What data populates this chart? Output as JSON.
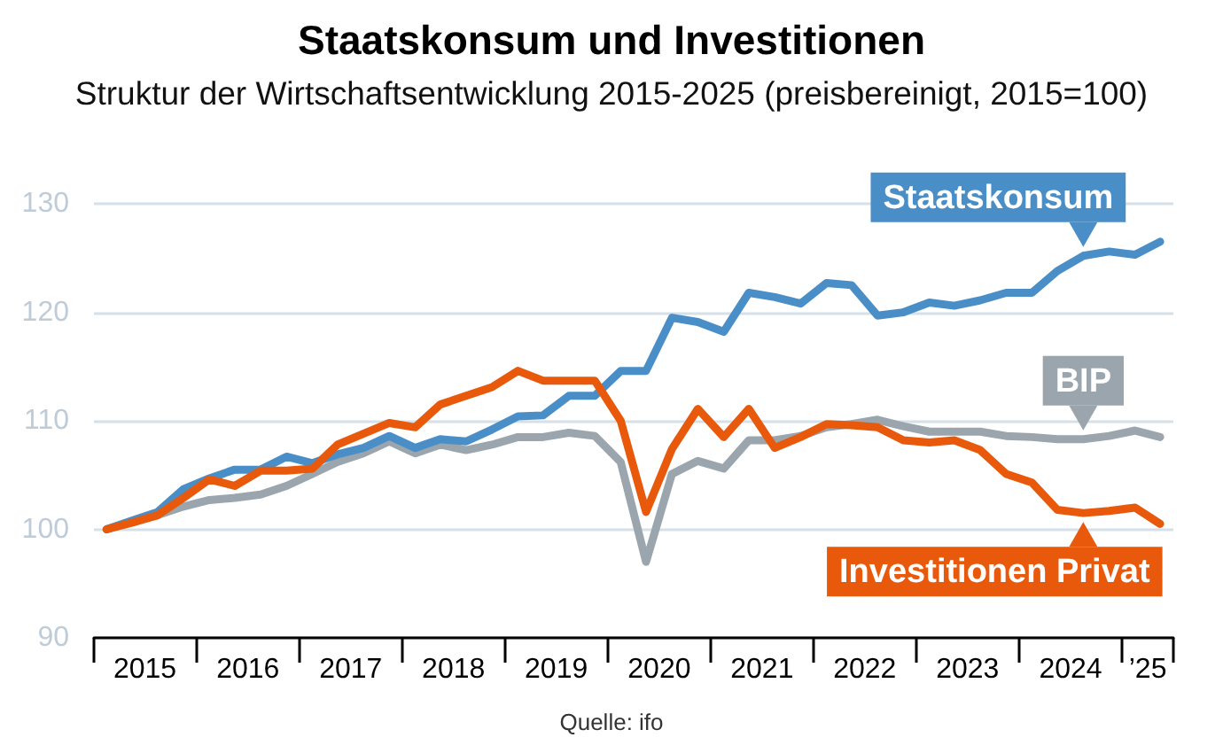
{
  "chart_data": {
    "type": "line",
    "title": "Staatskonsum und Investitionen",
    "subtitle": "Struktur der Wirtschaftsentwicklung 2015-2025 (preisbereinigt, 2015=100)",
    "annotations": [
      "Quelle: ifo"
    ],
    "x": [
      "2015-02-15",
      "2015-05-15",
      "2015-08-15",
      "2015-11-15",
      "2016-02-15",
      "2016-05-15",
      "2016-08-15",
      "2016-11-15",
      "2017-02-15",
      "2017-05-15",
      "2017-08-15",
      "2017-11-15",
      "2018-02-15",
      "2018-05-15",
      "2018-08-15",
      "2018-11-15",
      "2019-02-15",
      "2019-05-15",
      "2019-08-15",
      "2019-11-15",
      "2020-02-15",
      "2020-05-15",
      "2020-08-15",
      "2020-11-15",
      "2021-02-15",
      "2021-05-15",
      "2021-08-15",
      "2021-11-15",
      "2022-02-15",
      "2022-05-15",
      "2022-08-15",
      "2022-11-15",
      "2023-02-15",
      "2023-05-15",
      "2023-08-15",
      "2023-11-15",
      "2024-02-15",
      "2024-05-15",
      "2024-08-15",
      "2024-11-15",
      "2025-02-15",
      "2025-05-15"
    ],
    "series": [
      {
        "name": "BIP",
        "color": "#9aa5ad",
        "values": [
          100,
          100.7,
          101.3,
          102.1,
          102.7,
          102.9,
          103.2,
          104,
          105.1,
          106.2,
          107,
          108.1,
          107,
          107.8,
          107.3,
          107.8,
          108.5,
          108.5,
          108.9,
          108.6,
          106.2,
          97,
          105.1,
          106.3,
          105.6,
          108.2,
          108.2,
          108.6,
          109.4,
          109.7,
          110.1,
          109.5,
          109,
          109,
          109,
          108.6,
          108.5,
          108.3,
          108.3,
          108.6,
          109.1,
          108.5
        ]
      },
      {
        "name": "Staatskonsum",
        "color": "#4a8ec8",
        "values": [
          100,
          100.8,
          101.6,
          103.7,
          104.7,
          105.5,
          105.5,
          106.7,
          106.1,
          106.9,
          107.5,
          108.6,
          107.5,
          108.3,
          108.1,
          109.2,
          110.4,
          110.5,
          112.3,
          112.3,
          114.6,
          114.6,
          119.5,
          119.1,
          118.2,
          121.8,
          121.4,
          120.8,
          122.7,
          122.5,
          119.7,
          120,
          120.9,
          120.6,
          121.1,
          121.8,
          121.8,
          123.8,
          125.2,
          125.6,
          125.3,
          126.5
        ]
      },
      {
        "name": "Investitionen Privat",
        "color": "#e8590c",
        "values": [
          100,
          100.6,
          101.3,
          102.9,
          104.6,
          104,
          105.4,
          105.4,
          105.6,
          107.8,
          108.8,
          109.8,
          109.4,
          111.5,
          112.3,
          113.1,
          114.6,
          113.7,
          113.7,
          113.7,
          110,
          101.6,
          107.4,
          111.1,
          108.5,
          111.1,
          107.5,
          108.5,
          109.7,
          109.6,
          109.4,
          108.2,
          108,
          108.2,
          107.3,
          105.1,
          104.3,
          101.8,
          101.5,
          101.7,
          102,
          100.5
        ]
      }
    ],
    "xlim": [
      "2015-01-01",
      "2025-07-01"
    ],
    "xticks": [
      {
        "value": "2015-01-01",
        "label": null
      },
      {
        "value": "2015-07-01",
        "label": "2015"
      },
      {
        "value": "2016-01-01",
        "label": null
      },
      {
        "value": "2016-07-01",
        "label": "2016"
      },
      {
        "value": "2017-01-01",
        "label": null
      },
      {
        "value": "2017-07-01",
        "label": "2017"
      },
      {
        "value": "2018-01-01",
        "label": null
      },
      {
        "value": "2018-07-01",
        "label": "2018"
      },
      {
        "value": "2019-01-01",
        "label": null
      },
      {
        "value": "2019-07-01",
        "label": "2019"
      },
      {
        "value": "2020-01-01",
        "label": null
      },
      {
        "value": "2020-07-01",
        "label": "2020"
      },
      {
        "value": "2021-01-01",
        "label": null
      },
      {
        "value": "2021-07-01",
        "label": "2021"
      },
      {
        "value": "2022-01-01",
        "label": null
      },
      {
        "value": "2022-07-01",
        "label": "2022"
      },
      {
        "value": "2023-01-01",
        "label": null
      },
      {
        "value": "2023-07-01",
        "label": "2023"
      },
      {
        "value": "2024-01-01",
        "label": null
      },
      {
        "value": "2024-07-01",
        "label": "2024"
      },
      {
        "value": "2025-01-01",
        "label": null
      },
      {
        "value": "2025-04-01",
        "label": "’25"
      },
      {
        "value": "2025-07-01",
        "label": null
      }
    ],
    "ylim": [
      90,
      130
    ],
    "yticks": [
      90,
      100,
      110,
      120,
      130
    ],
    "grid": "y",
    "marker": "none",
    "line_style": "solid"
  }
}
